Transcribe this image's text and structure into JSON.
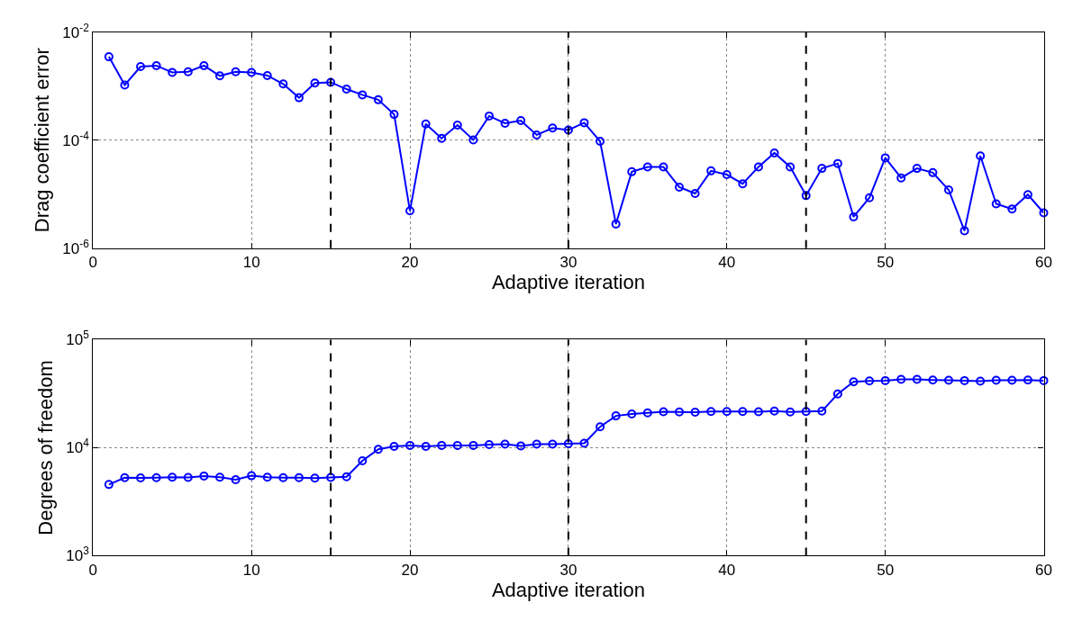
{
  "chart_data": [
    {
      "type": "line",
      "xlabel": "Adaptive iteration",
      "ylabel": "Drag coefficient error",
      "log": true,
      "grid": true,
      "marker": "circle",
      "line_style": "solid",
      "xlim": [
        0,
        60
      ],
      "xticks": [
        0,
        10,
        20,
        30,
        40,
        50,
        60
      ],
      "ylim": [
        1e-06,
        0.01
      ],
      "yticks": [
        {
          "value": 1e-06,
          "label": "10$^{-6}$"
        },
        {
          "value": 0.0001,
          "label": "10$^{-4}$"
        },
        {
          "value": 0.01,
          "label": "10$^{-2}$"
        }
      ],
      "x": [
        1,
        2,
        3,
        4,
        5,
        6,
        7,
        8,
        9,
        10,
        11,
        12,
        13,
        14,
        15,
        16,
        17,
        18,
        19,
        20,
        21,
        22,
        23,
        24,
        25,
        26,
        27,
        28,
        29,
        30,
        31,
        32,
        33,
        34,
        35,
        36,
        37,
        38,
        39,
        40,
        41,
        42,
        43,
        44,
        45,
        46,
        47,
        48,
        49,
        50,
        51,
        52,
        53,
        54,
        55,
        56,
        57,
        58,
        59,
        60
      ],
      "series": [
        {
          "color": "#0000ff",
          "values": [
            0.0035,
            0.00105,
            0.0023,
            0.0024,
            0.0018,
            0.00185,
            0.0024,
            0.00155,
            0.00185,
            0.0018,
            0.00157,
            0.0011,
            0.00061,
            0.00114,
            0.00118,
            0.00088,
            0.00069,
            0.00056,
            0.0003,
            4.9e-06,
            0.0002,
            0.000108,
            0.00019,
            0.000101,
            0.00028,
            0.000205,
            0.00023,
            0.000125,
            0.000168,
            0.000154,
            0.00021,
            9.5e-05,
            2.8e-06,
            2.6e-05,
            3.2e-05,
            3.2e-05,
            1.35e-05,
            1.03e-05,
            2.7e-05,
            2.3e-05,
            1.56e-05,
            3.2e-05,
            5.8e-05,
            3.2e-05,
            9.4e-06,
            3e-05,
            3.7e-05,
            3.8e-06,
            8.6e-06,
            4.7e-05,
            2e-05,
            3e-05,
            2.5e-05,
            1.2e-05,
            2.1e-06,
            5.1e-05,
            6.6e-06,
            5.3e-06,
            9.8e-06,
            4.5e-06
          ]
        }
      ],
      "ref_lines": [
        {
          "axis": "x",
          "value": 15,
          "color": "#000000",
          "line_style": "dashed"
        },
        {
          "axis": "x",
          "value": 30,
          "color": "#000000",
          "line_style": "dashed"
        },
        {
          "axis": "x",
          "value": 45,
          "color": "#000000",
          "line_style": "dashed"
        }
      ]
    },
    {
      "type": "line",
      "xlabel": "Adaptive iteration",
      "ylabel": "Degrees of freedom",
      "log": true,
      "grid": true,
      "marker": "circle",
      "line_style": "solid",
      "xlim": [
        0,
        60
      ],
      "xticks": [
        0,
        10,
        20,
        30,
        40,
        50,
        60
      ],
      "ylim": [
        1000,
        100000
      ],
      "yticks": [
        {
          "value": 1000,
          "label": "10$^{3}$"
        },
        {
          "value": 10000,
          "label": "10$^{4}$"
        },
        {
          "value": 100000,
          "label": "10$^{5}$"
        }
      ],
      "x": [
        1,
        2,
        3,
        4,
        5,
        6,
        7,
        8,
        9,
        10,
        11,
        12,
        13,
        14,
        15,
        16,
        17,
        18,
        19,
        20,
        21,
        22,
        23,
        24,
        25,
        26,
        27,
        28,
        29,
        30,
        31,
        32,
        33,
        34,
        35,
        36,
        37,
        38,
        39,
        40,
        41,
        42,
        43,
        44,
        45,
        46,
        47,
        48,
        49,
        50,
        51,
        52,
        53,
        54,
        55,
        56,
        57,
        58,
        59,
        60
      ],
      "series": [
        {
          "color": "#0000ff",
          "values": [
            4560,
            5280,
            5250,
            5280,
            5330,
            5300,
            5470,
            5330,
            5060,
            5500,
            5330,
            5280,
            5280,
            5220,
            5300,
            5390,
            7570,
            9670,
            10300,
            10500,
            10300,
            10500,
            10500,
            10500,
            10700,
            10800,
            10400,
            10800,
            10800,
            10900,
            11000,
            15600,
            19700,
            20500,
            21000,
            21500,
            21400,
            21300,
            21600,
            21600,
            21600,
            21500,
            21800,
            21400,
            21600,
            21800,
            31400,
            40800,
            41500,
            41800,
            42900,
            42900,
            42400,
            42100,
            41800,
            41300,
            42100,
            42100,
            42400,
            41800
          ]
        }
      ],
      "ref_lines": [
        {
          "axis": "x",
          "value": 15,
          "color": "#000000",
          "line_style": "dashed"
        },
        {
          "axis": "x",
          "value": 30,
          "color": "#000000",
          "line_style": "dashed"
        },
        {
          "axis": "x",
          "value": 45,
          "color": "#000000",
          "line_style": "dashed"
        }
      ]
    }
  ]
}
